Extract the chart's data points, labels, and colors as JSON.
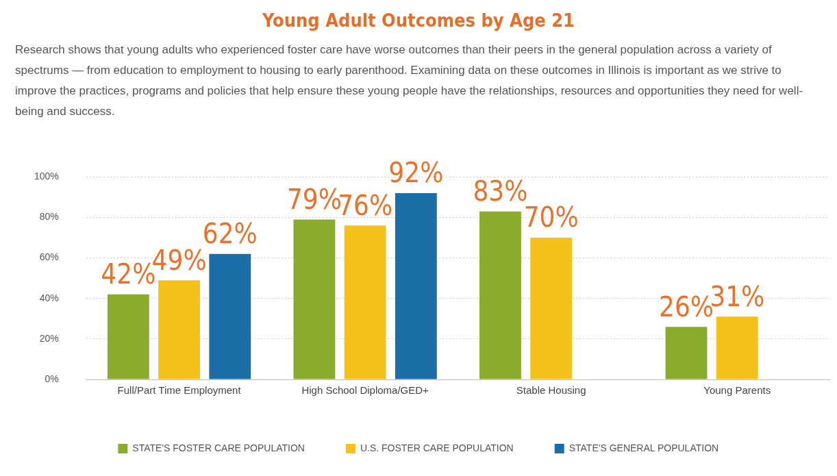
{
  "chart_data": {
    "type": "bar",
    "title": "Young Adult Outcomes by Age 21",
    "subtitle": "Research shows that young adults who experienced foster care have worse outcomes than their peers in the general population across a variety of spectrums — from education to employment to housing to early parenthood. Examining data on these outcomes in Illinois is important as we strive to improve the practices, programs and policies that help ensure these young people have the relationships, resources and opportunities they need for well-being and success.",
    "categories": [
      "Full/Part Time Employment",
      "High School Diploma/GED+",
      "Stable Housing",
      "Young Parents"
    ],
    "series": [
      {
        "name": "STATE'S FOSTER CARE POPULATION",
        "color": "#8aab2c",
        "values": [
          42,
          79,
          83,
          26
        ],
        "value_labels": [
          "42%",
          "79%",
          "83%",
          "26%"
        ]
      },
      {
        "name": "U.S. FOSTER CARE POPULATION",
        "color": "#f4c21b",
        "values": [
          49,
          76,
          70,
          31
        ],
        "value_labels": [
          "49%",
          "76%",
          "70%",
          "31%"
        ]
      },
      {
        "name": "STATE'S GENERAL POPULATION",
        "color": "#1b6ea6",
        "values": [
          62,
          92,
          null,
          null
        ],
        "value_labels": [
          "62%",
          "92%",
          null,
          null
        ]
      }
    ],
    "ylim": [
      0,
      100
    ],
    "yticks": [
      {
        "value": 0,
        "label": "0%"
      },
      {
        "value": 20,
        "label": "20%"
      },
      {
        "value": 40,
        "label": "40%"
      },
      {
        "value": 60,
        "label": "60%"
      },
      {
        "value": 80,
        "label": "80%"
      },
      {
        "value": 100,
        "label": "100%"
      }
    ],
    "grid": "y",
    "legend": "bottom"
  }
}
